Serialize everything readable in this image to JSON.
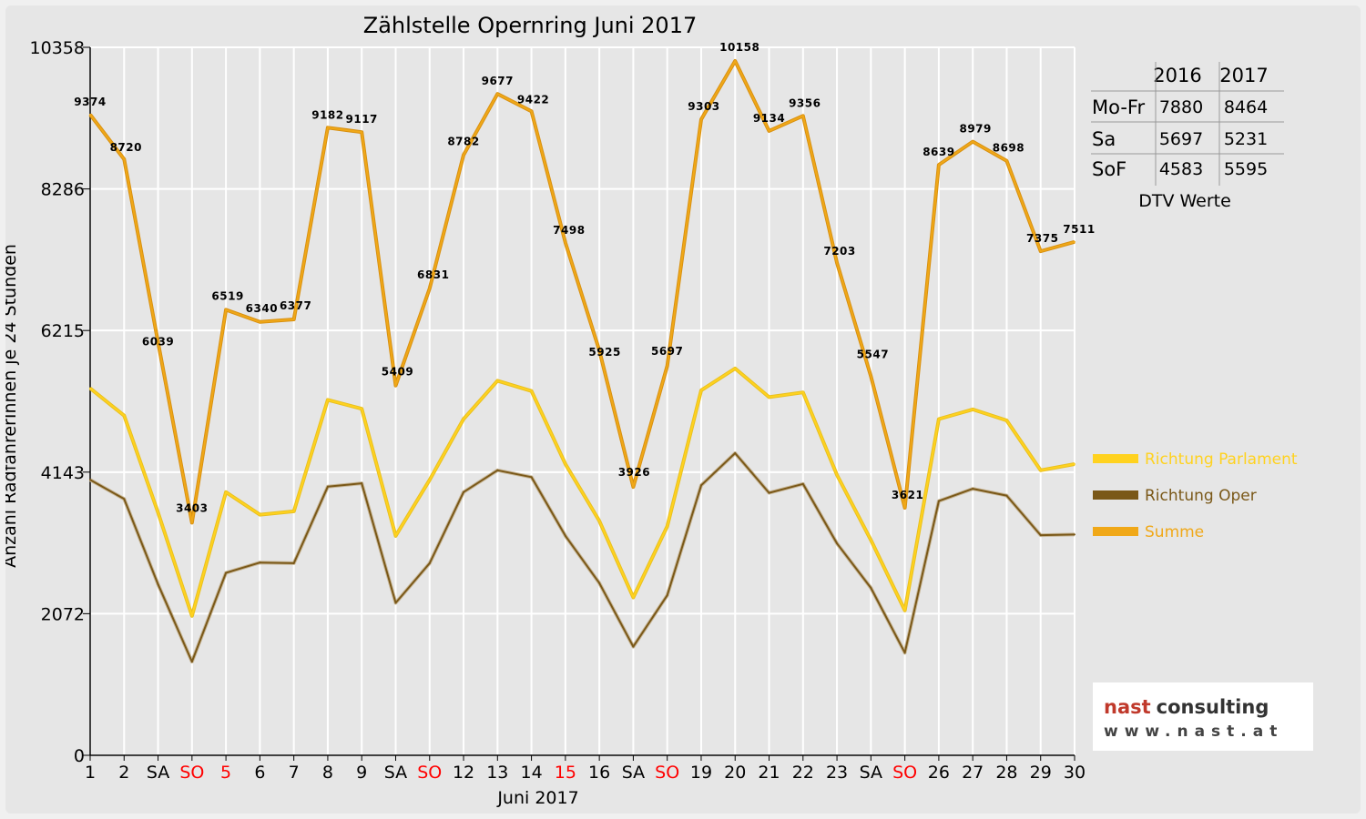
{
  "chart_data": {
    "type": "line",
    "title": "Zählstelle Opernring Juni 2017",
    "xlabel": "Juni 2017",
    "ylabel": "Anzahl RadfahrerInnen je 24 Stunden",
    "ylim": [
      0,
      10358
    ],
    "yticks": [
      "0",
      "2072",
      "4143",
      "6215",
      "8286",
      "10358"
    ],
    "yticks_values": [
      0,
      2072,
      4143,
      6215,
      8286,
      10358
    ],
    "grid": true,
    "legend_position": "right",
    "categories": [
      "1",
      "2",
      "SA",
      "SO",
      "5",
      "6",
      "7",
      "8",
      "9",
      "SA",
      "SO",
      "12",
      "13",
      "14",
      "15",
      "16",
      "SA",
      "SO",
      "19",
      "20",
      "21",
      "22",
      "23",
      "SA",
      "SO",
      "26",
      "27",
      "28",
      "29",
      "30"
    ],
    "red_categories": [
      3,
      4,
      10,
      14,
      17,
      24
    ],
    "series": [
      {
        "name": "Richtung Parlament",
        "color": "#ffd21f",
        "values": [
          5370,
          4970,
          3550,
          2040,
          3850,
          3520,
          3570,
          5200,
          5070,
          3210,
          4030,
          4920,
          5480,
          5330,
          4260,
          3430,
          2310,
          3350,
          5340,
          5660,
          5240,
          5310,
          4100,
          3150,
          2120,
          4920,
          5060,
          4900,
          4170,
          4260
        ]
      },
      {
        "name": "Richtung Oper",
        "color": "#7a5818",
        "values": [
          4030,
          3750,
          2500,
          1370,
          2670,
          2820,
          2810,
          3930,
          3980,
          2230,
          2810,
          3850,
          4170,
          4070,
          3210,
          2520,
          1590,
          2340,
          3950,
          4420,
          3840,
          3970,
          3100,
          2450,
          1500,
          3720,
          3900,
          3800,
          3220,
          3230
        ]
      },
      {
        "name": "Summe",
        "color": "#f0a818",
        "values": [
          9374,
          8720,
          6039,
          3403,
          6519,
          6340,
          6377,
          9182,
          9117,
          5409,
          6831,
          8782,
          9677,
          9422,
          7498,
          5925,
          3926,
          5697,
          9303,
          10158,
          9134,
          9356,
          7203,
          5547,
          3621,
          8639,
          8979,
          8698,
          7375,
          7511
        ],
        "labels": [
          "9374",
          "8720",
          "6039",
          "3403",
          "6519",
          "6340",
          "6377",
          "9182",
          "9117",
          "5409",
          "6831",
          "8782",
          "9677",
          "9422",
          "7498",
          "5925",
          "3926",
          "5697",
          "9303",
          "10158",
          "9134",
          "9356",
          "7203",
          "5547",
          "3621",
          "8639",
          "8979",
          "8698",
          "7375",
          "7511"
        ]
      }
    ]
  },
  "dtv_table": {
    "caption": "DTV Werte",
    "header": [
      "",
      "2016",
      "2017"
    ],
    "rows": [
      [
        "Mo-Fr",
        "7880",
        "8464"
      ],
      [
        "Sa",
        "5697",
        "5231"
      ],
      [
        "SoF",
        "4583",
        "5595"
      ]
    ]
  },
  "logo": {
    "part1": "nast",
    "part2": "consulting",
    "url": "www.nast.at"
  }
}
